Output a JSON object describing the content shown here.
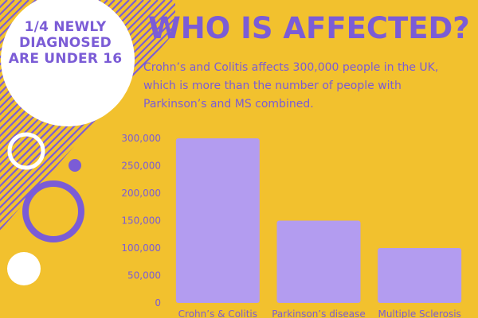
{
  "callout": {
    "lines": [
      "1/4 NEWLY",
      "DIAGNOSED",
      "ARE UNDER 16"
    ]
  },
  "header": {
    "title": "WHO IS AFFECTED?",
    "description_lines": [
      "Crohn’s and Colitis affects 300,000 people in the UK,",
      "which is more than the number of people with",
      "Parkinson’s and MS combined."
    ]
  },
  "colors": {
    "background": "#f2c12e",
    "accent": "#7b5cd6",
    "bar": "#b39cf0",
    "white": "#ffffff"
  },
  "chart_data": {
    "type": "bar",
    "categories": [
      "Crohn’s & Colitis",
      "Parkinson’s disease",
      "Multiple Sclerosis"
    ],
    "values": [
      300000,
      150000,
      100000
    ],
    "yticks": [
      "0",
      "50,000",
      "100,000",
      "150,000",
      "200,000",
      "250,000",
      "300,000"
    ],
    "ylim": [
      0,
      300000
    ],
    "grid": false,
    "legend": "none"
  }
}
